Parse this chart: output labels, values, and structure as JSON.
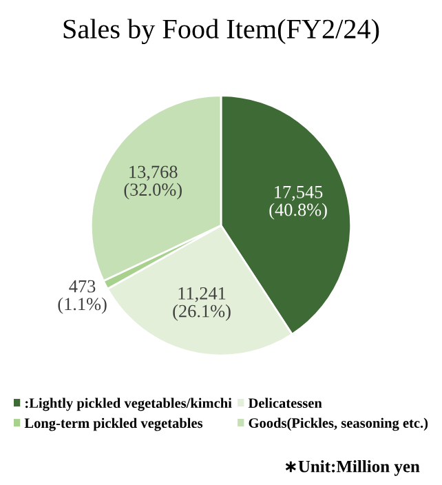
{
  "chart_data": {
    "type": "pie",
    "title": "Sales by Food Item(FY2/24)",
    "categories": [
      ":Lightly pickled vegetables/kimchi",
      "Delicatessen",
      "Long-term pickled vegetables",
      "Goods(Pickles, seasoning etc.)"
    ],
    "values": [
      17545,
      11241,
      473,
      13768
    ],
    "value_labels": [
      "17,545\n(40.8%)",
      "11,241\n(26.1%)",
      "473\n(1.1%)",
      "13,768\n(32.0%)"
    ],
    "colors": [
      "#3e6b35",
      "#e3efd9",
      "#a9d18e",
      "#c5e0b4"
    ],
    "legend": "bottom",
    "annotations": [
      "∗Unit:Million yen"
    ]
  }
}
